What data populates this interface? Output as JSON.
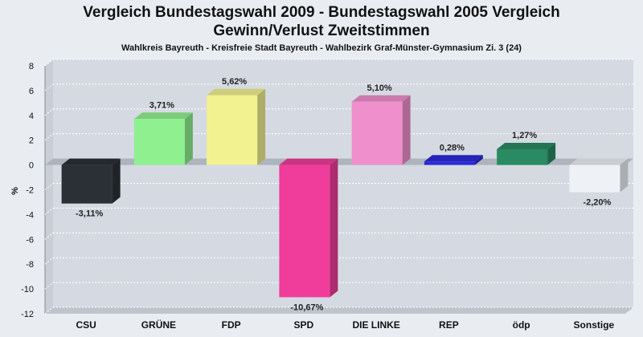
{
  "chart_data": {
    "type": "bar",
    "title_line1": "Vergleich Bundestagswahl 2009 - Bundestagswahl 2005 Vergleich",
    "title_line2": "Gewinn/Verlust Zweitstimmen",
    "subtitle": "Wahlkreis Bayreuth - Kreisfreie Stadt Bayreuth - Wahlbezirk Graf-Münster-Gymnasium Zi. 3 (24)",
    "ylabel": "%",
    "xlabel": "",
    "ylim": [
      -12,
      8
    ],
    "yticks": [
      8,
      6,
      4,
      2,
      0,
      -2,
      -4,
      -6,
      -8,
      -10,
      -12
    ],
    "grid": true,
    "categories": [
      "CSU",
      "GRÜNE",
      "FDP",
      "SPD",
      "DIE LINKE",
      "REP",
      "ödp",
      "Sonstige"
    ],
    "values": [
      -3.11,
      3.71,
      5.62,
      -10.67,
      5.1,
      0.28,
      1.27,
      -2.2
    ],
    "value_labels": [
      "-3,11%",
      "3,71%",
      "5,62%",
      "-10,67%",
      "5,10%",
      "0,28%",
      "1,27%",
      "-2,20%"
    ],
    "colors": [
      "#2b2f36",
      "#8ff08f",
      "#f2f290",
      "#f03c9a",
      "#ef8fcc",
      "#2a2ad8",
      "#2a8a62",
      "#eef1f6"
    ]
  }
}
